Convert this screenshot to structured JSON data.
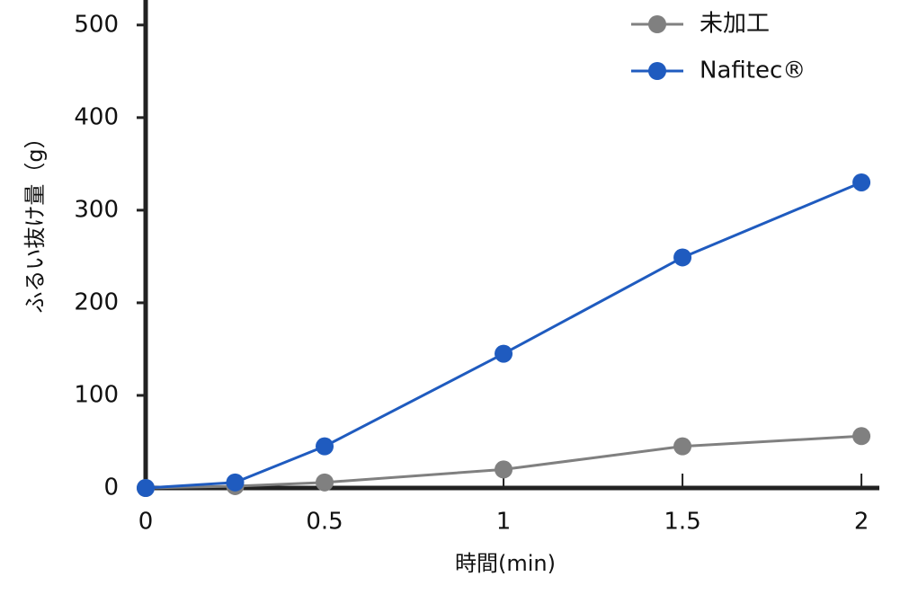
{
  "chart_data": {
    "type": "line",
    "x_label": "時間(min)",
    "y_label": "ふるい抜け量（g）",
    "xlim": [
      0,
      2.05
    ],
    "ylim": [
      0,
      527
    ],
    "xticks": [
      0,
      0.5,
      1,
      1.5,
      2
    ],
    "yticks": [
      0,
      100,
      200,
      300,
      400,
      500
    ],
    "legend": "upper right",
    "series": [
      {
        "name": "未加工",
        "color": "#808080",
        "x": [
          0,
          0.25,
          0.5,
          1,
          1.5,
          2
        ],
        "values": [
          0,
          2,
          6,
          20,
          45,
          56
        ]
      },
      {
        "name": "Nafitec®",
        "color": "#1f5bbf",
        "x": [
          0,
          0.25,
          0.5,
          1,
          1.5,
          2
        ],
        "values": [
          0,
          6,
          45,
          145,
          249,
          330
        ]
      }
    ]
  }
}
